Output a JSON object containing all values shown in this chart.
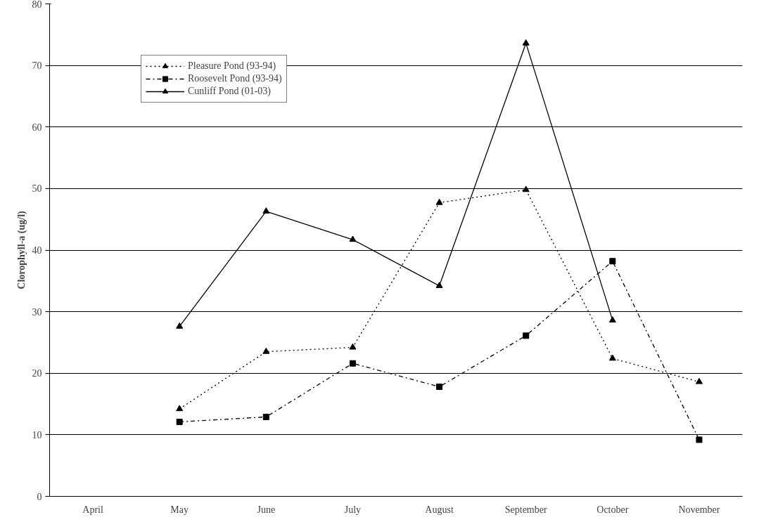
{
  "chart_data": {
    "type": "line",
    "ylabel": "Clorophyll-a (ug/l)",
    "categories": [
      "April",
      "May",
      "June",
      "July",
      "August",
      "September",
      "October",
      "November"
    ],
    "series": [
      {
        "name": "Pleasure Pond (93-94)",
        "color": "#000000",
        "marker": "triangle",
        "line_style": "dotted",
        "values": [
          null,
          14.2,
          23.5,
          24.2,
          47.7,
          49.8,
          22.4,
          18.6
        ]
      },
      {
        "name": "Roosevelt Pond (93-94)",
        "color": "#000000",
        "marker": "square",
        "line_style": "dashed",
        "values": [
          null,
          12.1,
          12.9,
          21.6,
          17.8,
          26.1,
          38.2,
          9.2
        ]
      },
      {
        "name": "Cunliff Pond (01-03)",
        "color": "#000000",
        "marker": "triangle",
        "line_style": "solid",
        "values": [
          null,
          27.6,
          46.3,
          41.7,
          34.2,
          73.6,
          28.6,
          null
        ]
      }
    ],
    "ylim": [
      0,
      80
    ],
    "yticks": [
      0,
      10,
      20,
      30,
      40,
      50,
      60,
      70,
      80
    ],
    "grid": "y",
    "legend": "top left"
  }
}
